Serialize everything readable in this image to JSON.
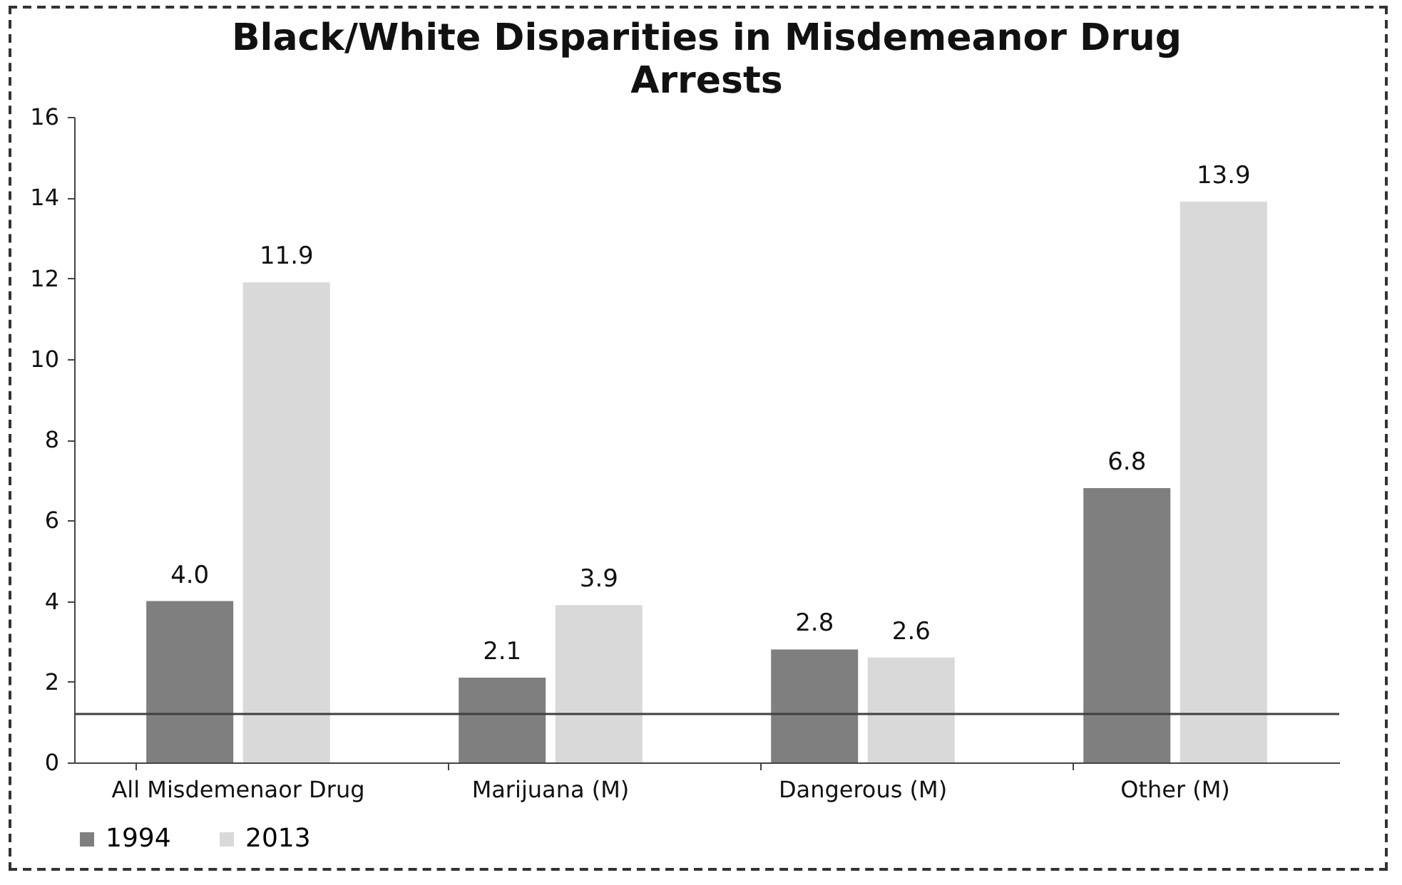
{
  "chart_data": {
    "type": "bar",
    "title": "Black/White Disparities in Misdemeanor Drug Arrests",
    "categories": [
      "All Misdemenaor Drug",
      "Marijuana (M)",
      "Dangerous (M)",
      "Other (M)"
    ],
    "series": [
      {
        "name": "1994",
        "color": "#7f7f7f",
        "values": [
          4.0,
          2.1,
          2.8,
          6.8
        ],
        "value_labels": [
          "4.0",
          "2.1",
          "2.8",
          "6.8"
        ]
      },
      {
        "name": "2013",
        "color": "#d9d9d9",
        "values": [
          11.9,
          3.9,
          2.6,
          13.9
        ],
        "value_labels": [
          "11.9",
          "3.9",
          "2.6",
          "13.9"
        ]
      }
    ],
    "ylim": [
      0,
      16
    ],
    "yticks": [
      0,
      2,
      4,
      6,
      8,
      10,
      12,
      14,
      16
    ],
    "ref_lines": [
      {
        "axis": "y",
        "value": 1.2,
        "color": "#404040"
      }
    ],
    "legend": "bottom",
    "grid": false
  }
}
